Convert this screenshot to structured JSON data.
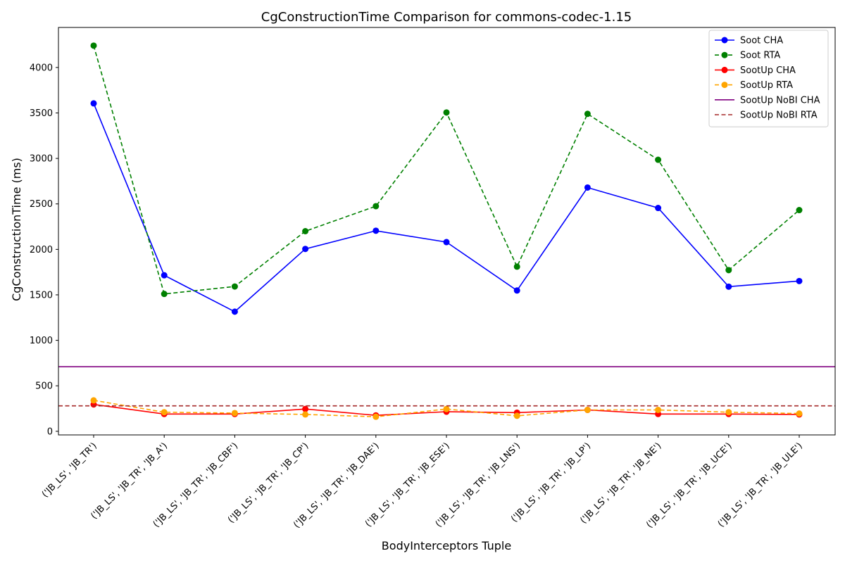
{
  "chart_data": {
    "type": "line",
    "title": "CgConstructionTime Comparison for commons-codec-1.15",
    "xlabel": "BodyInterceptors Tuple",
    "ylabel": "CgConstructionTime (ms)",
    "ylim": [
      -40,
      4440
    ],
    "yticks": [
      0,
      500,
      1000,
      1500,
      2000,
      2500,
      3000,
      3500,
      4000
    ],
    "grid": false,
    "legend_position": "top-right",
    "categories": [
      "('JB_LS', 'JB_TR')",
      "('JB_LS', 'JB_TR', 'JB_A')",
      "('JB_LS', 'JB_TR', 'JB_CBF')",
      "('JB_LS', 'JB_TR', 'JB_CP')",
      "('JB_LS', 'JB_TR', 'JB_DAE')",
      "('JB_LS', 'JB_TR', 'JB_ESE')",
      "('JB_LS', 'JB_TR', 'JB_LNS')",
      "('JB_LS', 'JB_TR', 'JB_LP')",
      "('JB_LS', 'JB_TR', 'JB_NE')",
      "('JB_LS', 'JB_TR', 'JB_UCE')",
      "('JB_LS', 'JB_TR', 'JB_ULE')"
    ],
    "series": [
      {
        "name": "Soot CHA",
        "color": "#0000ff",
        "dashed": false,
        "markers": true,
        "values": [
          3605,
          1715,
          1315,
          2005,
          2205,
          2080,
          1548,
          2680,
          2455,
          1590,
          1652
        ]
      },
      {
        "name": "Soot RTA",
        "color": "#008000",
        "dashed": true,
        "markers": true,
        "values": [
          4240,
          1510,
          1592,
          2200,
          2475,
          3505,
          1810,
          3490,
          2985,
          1772,
          2432
        ]
      },
      {
        "name": "SootUp CHA",
        "color": "#ff0000",
        "dashed": false,
        "markers": true,
        "values": [
          295,
          190,
          190,
          245,
          175,
          215,
          205,
          235,
          190,
          190,
          185
        ]
      },
      {
        "name": "SootUp RTA",
        "color": "#ffa500",
        "dashed": true,
        "markers": true,
        "values": [
          340,
          210,
          200,
          185,
          160,
          245,
          170,
          235,
          235,
          210,
          195
        ]
      },
      {
        "name": "SootUp NoBI CHA",
        "color": "#800080",
        "dashed": false,
        "markers": false,
        "hline": 710
      },
      {
        "name": "SootUp NoBI RTA",
        "color": "#a52a2a",
        "dashed": true,
        "markers": false,
        "hline": 280
      }
    ]
  }
}
